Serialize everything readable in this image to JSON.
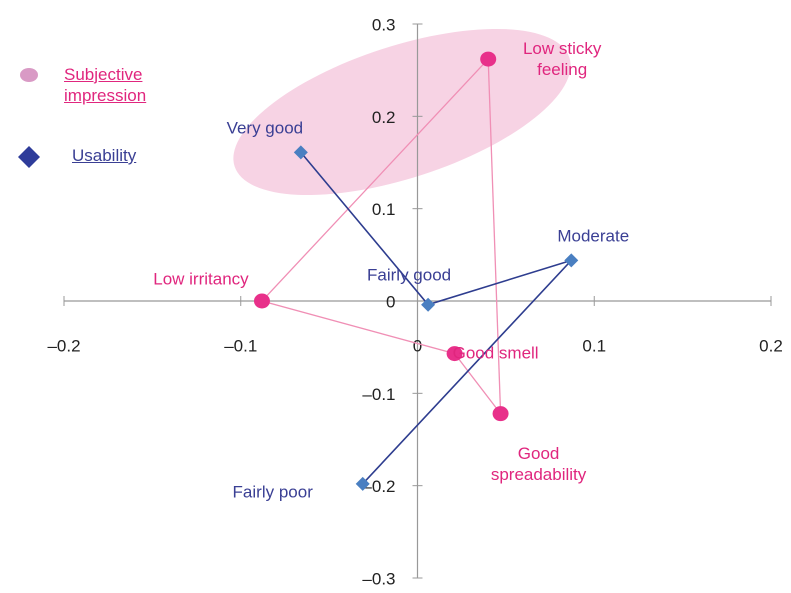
{
  "chart_data": {
    "type": "scatter",
    "xlim": [
      -0.2,
      0.2
    ],
    "ylim": [
      -0.3,
      0.3
    ],
    "xticks": [
      {
        "value": -0.2,
        "label": "–0.2"
      },
      {
        "value": -0.1,
        "label": "–0.1"
      },
      0,
      0.1,
      0.2
    ],
    "yticks": [
      {
        "value": -0.3,
        "label": "–0.3"
      },
      {
        "value": -0.2,
        "label": "–0.2"
      },
      {
        "value": -0.1,
        "label": "–0.1"
      },
      0,
      0.1,
      0.2,
      0.3
    ],
    "series": [
      {
        "name": "Subjective impression",
        "color": "#e8308a",
        "marker": "circle",
        "closed": true,
        "labels": [
          "Low sticky feeling",
          "Low irritancy",
          "Good smell",
          "Good spreadability"
        ],
        "x": [
          0.04,
          -0.088,
          0.021,
          0.047
        ],
        "y": [
          0.262,
          0.0,
          -0.057,
          -0.122
        ]
      },
      {
        "name": "Usability",
        "color": "#4a7fc1",
        "marker": "diamond",
        "closed": false,
        "labels": [
          "Very good",
          "Fairly good",
          "Moderate",
          "Fairly poor"
        ],
        "x": [
          -0.066,
          0.006,
          0.087,
          -0.031
        ],
        "y": [
          0.161,
          -0.004,
          0.044,
          -0.198
        ]
      }
    ]
  }
}
